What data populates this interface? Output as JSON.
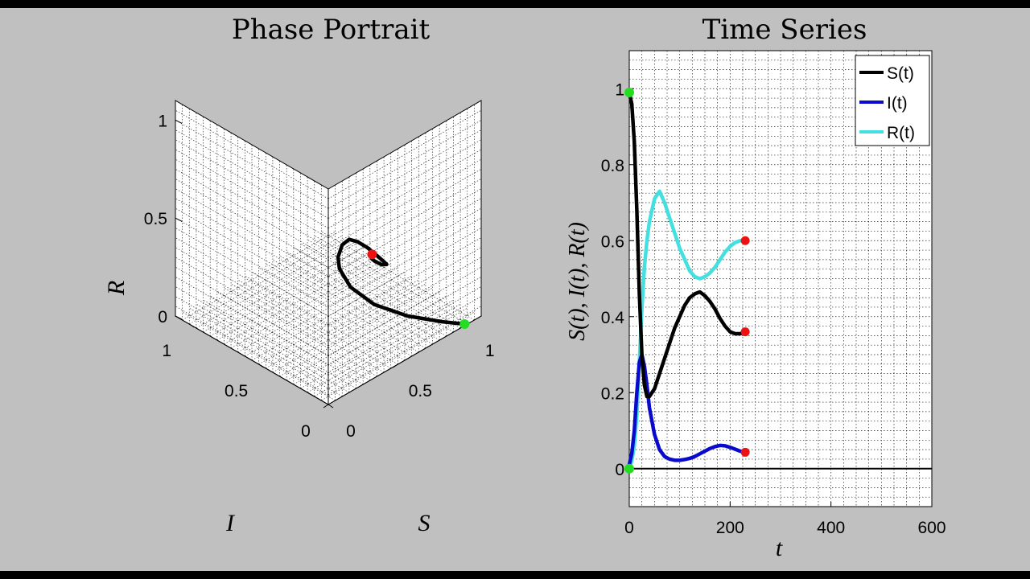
{
  "chart_data": [
    {
      "type": "line3d",
      "title": "Phase Portrait",
      "xlabel": "S",
      "ylabel": "I",
      "zlabel": "R",
      "x_ticks": [
        "0",
        "0.5",
        "1"
      ],
      "y_ticks": [
        "0",
        "0.5",
        "1"
      ],
      "z_ticks": [
        "0",
        "0.5",
        "1"
      ],
      "xlim": [
        0,
        1.1
      ],
      "ylim": [
        0,
        1.1
      ],
      "zlim": [
        0,
        1.1
      ],
      "grid": true,
      "series": [
        {
          "color": "#000000",
          "points": [
            [
              0.99,
              0.01,
              0.0
            ],
            [
              0.9,
              0.08,
              0.02
            ],
            [
              0.75,
              0.18,
              0.07
            ],
            [
              0.58,
              0.25,
              0.17
            ],
            [
              0.42,
              0.26,
              0.32
            ],
            [
              0.3,
              0.22,
              0.48
            ],
            [
              0.22,
              0.15,
              0.6
            ],
            [
              0.19,
              0.09,
              0.7
            ],
            [
              0.2,
              0.05,
              0.74
            ],
            [
              0.24,
              0.03,
              0.72
            ],
            [
              0.3,
              0.02,
              0.67
            ],
            [
              0.37,
              0.02,
              0.6
            ],
            [
              0.43,
              0.03,
              0.54
            ],
            [
              0.46,
              0.04,
              0.51
            ],
            [
              0.44,
              0.055,
              0.51
            ],
            [
              0.4,
              0.065,
              0.54
            ],
            [
              0.37,
              0.06,
              0.57
            ],
            [
              0.355,
              0.05,
              0.595
            ],
            [
              0.36,
              0.045,
              0.6
            ]
          ]
        }
      ],
      "start_point": [
        0.99,
        0.01,
        0.0
      ],
      "end_point": [
        0.36,
        0.045,
        0.6
      ],
      "start_color": "#22dd22",
      "end_color": "#ee1111"
    },
    {
      "type": "line",
      "title": "Time Series",
      "xlabel": "t",
      "ylabel": "S(t), I(t), R(t)",
      "xlim": [
        0,
        600
      ],
      "ylim": [
        -0.1,
        1.1
      ],
      "x_ticks": [
        0,
        200,
        400,
        600
      ],
      "y_ticks": [
        0,
        0.2,
        0.4,
        0.6,
        0.8,
        1
      ],
      "x_tick_labels": [
        "0",
        "200",
        "400",
        "600"
      ],
      "y_tick_labels": [
        "0",
        "0.2",
        "0.4",
        "0.6",
        "0.8",
        "1"
      ],
      "grid": true,
      "legend_position": "top-right",
      "baseline": 0,
      "series": [
        {
          "name": "S(t)",
          "color": "#000000",
          "x": [
            0,
            5,
            10,
            15,
            20,
            25,
            30,
            35,
            40,
            50,
            60,
            70,
            80,
            90,
            100,
            110,
            120,
            130,
            140,
            150,
            160,
            170,
            180,
            190,
            200,
            210,
            220,
            230
          ],
          "y": [
            0.99,
            0.96,
            0.86,
            0.68,
            0.46,
            0.3,
            0.22,
            0.19,
            0.19,
            0.21,
            0.25,
            0.29,
            0.33,
            0.37,
            0.4,
            0.43,
            0.45,
            0.46,
            0.465,
            0.455,
            0.44,
            0.42,
            0.395,
            0.375,
            0.36,
            0.355,
            0.355,
            0.36
          ]
        },
        {
          "name": "I(t)",
          "color": "#0a0acc",
          "x": [
            0,
            5,
            10,
            15,
            20,
            25,
            30,
            35,
            40,
            50,
            60,
            70,
            80,
            90,
            100,
            110,
            120,
            130,
            140,
            150,
            160,
            170,
            180,
            190,
            200,
            210,
            220,
            230
          ],
          "y": [
            0.01,
            0.04,
            0.1,
            0.2,
            0.28,
            0.3,
            0.27,
            0.22,
            0.16,
            0.09,
            0.05,
            0.032,
            0.025,
            0.022,
            0.022,
            0.024,
            0.027,
            0.032,
            0.039,
            0.046,
            0.053,
            0.058,
            0.061,
            0.06,
            0.056,
            0.051,
            0.046,
            0.043
          ]
        },
        {
          "name": "R(t)",
          "color": "#44e0e0",
          "x": [
            0,
            5,
            10,
            15,
            20,
            25,
            30,
            35,
            40,
            50,
            60,
            70,
            80,
            90,
            100,
            110,
            120,
            130,
            140,
            150,
            160,
            170,
            180,
            190,
            200,
            210,
            220,
            230
          ],
          "y": [
            0.0,
            0.02,
            0.06,
            0.14,
            0.28,
            0.42,
            0.53,
            0.6,
            0.65,
            0.71,
            0.73,
            0.7,
            0.66,
            0.62,
            0.58,
            0.55,
            0.52,
            0.505,
            0.5,
            0.505,
            0.515,
            0.53,
            0.55,
            0.57,
            0.585,
            0.595,
            0.6,
            0.6
          ]
        }
      ],
      "end_markers": [
        {
          "x": 230,
          "y": 0.6,
          "color": "#ee1111"
        },
        {
          "x": 230,
          "y": 0.36,
          "color": "#ee1111"
        },
        {
          "x": 230,
          "y": 0.043,
          "color": "#ee1111"
        }
      ],
      "start_markers": [
        {
          "x": 0,
          "y": 0.99,
          "color": "#22dd22"
        },
        {
          "x": 0,
          "y": 0.0,
          "color": "#22dd22"
        }
      ]
    }
  ]
}
